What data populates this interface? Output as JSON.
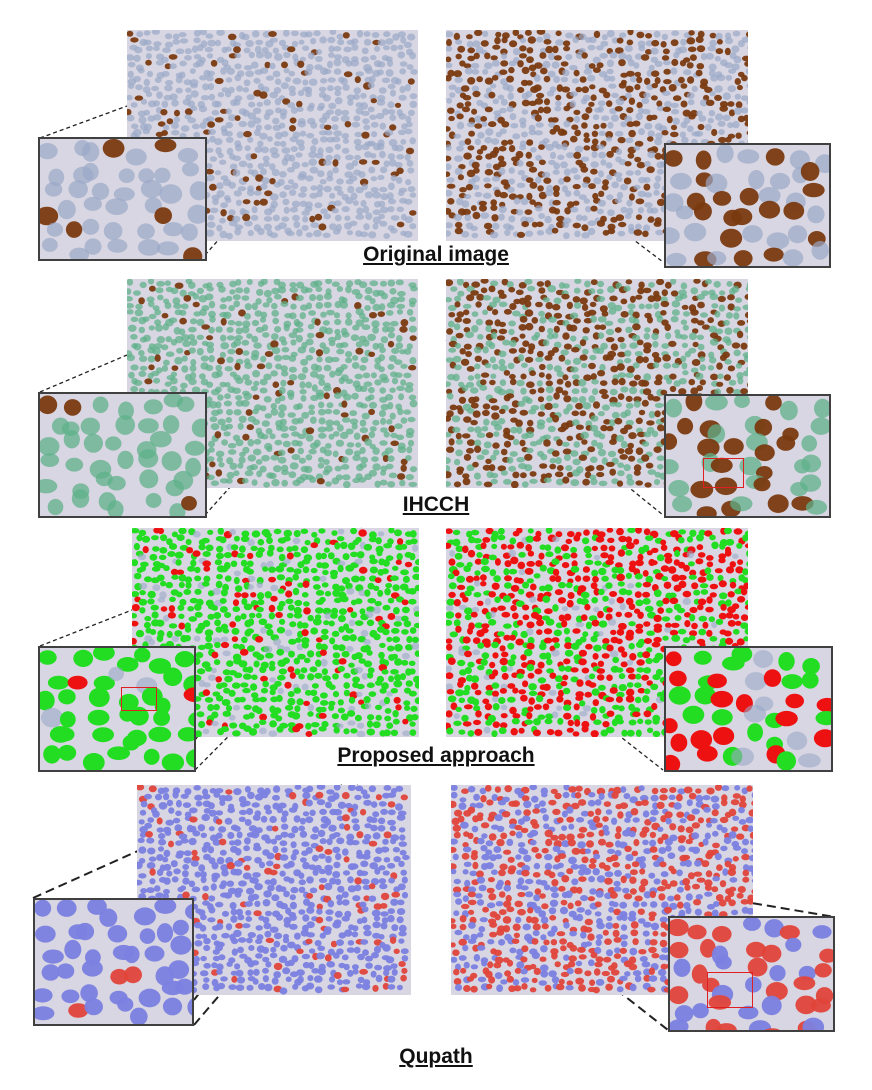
{
  "figure": {
    "rows": [
      {
        "id": "original",
        "caption": "Original image",
        "style": "stain"
      },
      {
        "id": "ihcch",
        "caption": "IHCCH",
        "style": "ihcch"
      },
      {
        "id": "proposed",
        "caption": "Proposed approach",
        "style": "proposed"
      },
      {
        "id": "qupath",
        "caption": "Qupath",
        "style": "qupath"
      }
    ]
  },
  "colors": {
    "tissue_bg": "#d8d6e2",
    "brown_nucleus": "#7a3a10",
    "blue_nucleus": "#9aa8c8",
    "ihcch_green": "#5fb08a",
    "proposed_green": "#22dd22",
    "proposed_red": "#ee1111",
    "qupath_blue": "#7b80e0",
    "qupath_red": "#e0453a",
    "highlight_box": "#e02020"
  }
}
